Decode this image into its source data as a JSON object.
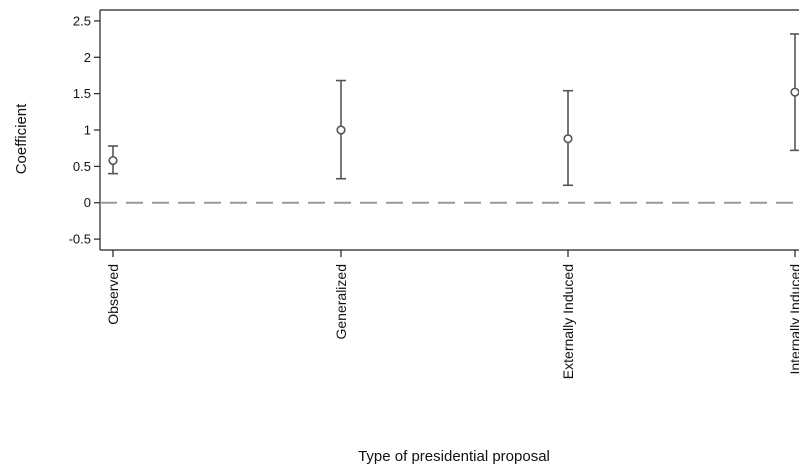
{
  "chart_data": {
    "type": "scatter",
    "subtype": "point-estimate-with-error-bars",
    "xlabel": "Type of presidential proposal",
    "ylabel": "Coefficient",
    "categories": [
      "Observed",
      "Generalized",
      "Externally Induced",
      "Internally Induced"
    ],
    "series": [
      {
        "values": [
          0.58,
          1.0,
          0.88,
          1.52
        ],
        "lower": [
          0.4,
          0.33,
          0.24,
          0.72
        ],
        "upper": [
          0.78,
          1.68,
          1.54,
          2.32
        ]
      }
    ],
    "yticks": [
      -0.5,
      0,
      0.5,
      1,
      1.5,
      2,
      2.5
    ],
    "ytick_labels": [
      "-0.5",
      "0",
      "0.5",
      "1",
      "1.5",
      "2",
      "2.5"
    ],
    "ylim": [
      -0.65,
      2.65
    ],
    "reference_line": {
      "y": 0,
      "style": "dashed"
    },
    "grid": false,
    "colors": {
      "marker": "#555555",
      "errorbar": "#555555",
      "reference_line": "#999999",
      "axis": "#222222"
    }
  }
}
